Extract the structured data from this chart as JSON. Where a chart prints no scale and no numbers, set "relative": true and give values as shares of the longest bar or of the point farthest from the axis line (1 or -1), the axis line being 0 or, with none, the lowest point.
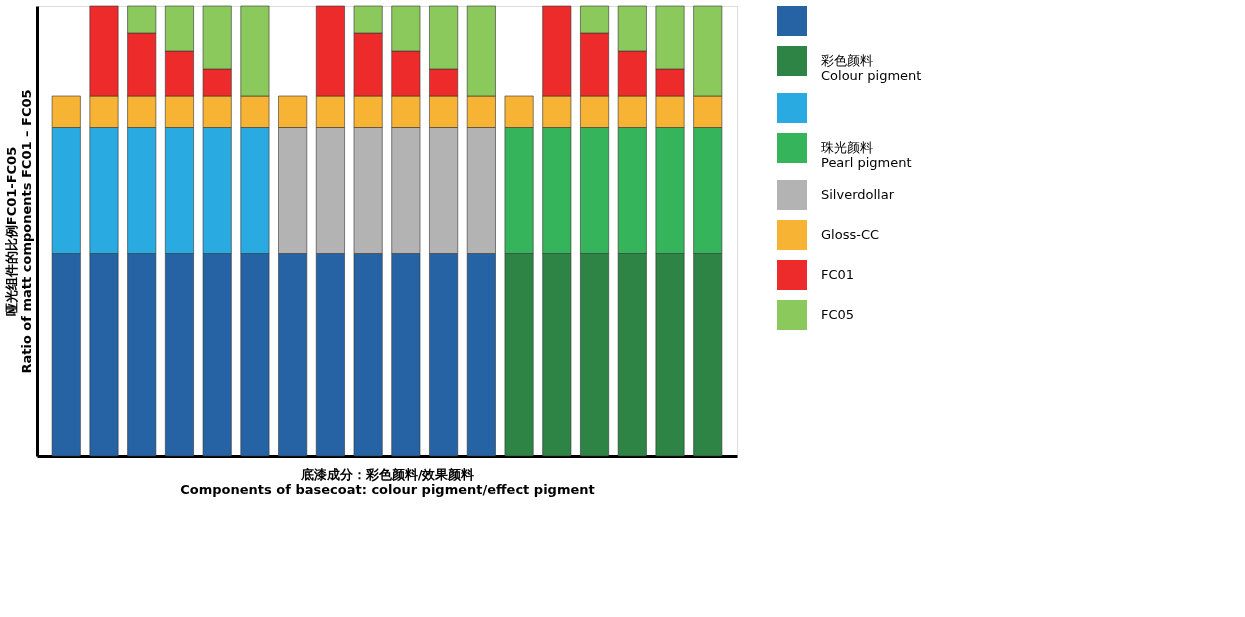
{
  "chart_data": {
    "type": "bar",
    "stacked": true,
    "relative": true,
    "grid": false,
    "tick_labels": false,
    "legend": "right",
    "xlabel": "底漆成分：彩色颜料/效果颜料\nComponents of basecoat: colour pigment/effect pigment",
    "ylabel": "哑光组件的比例FC01-FC05\nRatio of matt components FC01 – FC05",
    "categories": [
      null,
      null,
      null,
      null,
      null,
      null,
      null,
      null,
      null,
      null,
      null,
      null,
      null,
      null,
      null,
      null,
      null,
      null
    ],
    "series": [
      {
        "name": "彩色颜料\nColour pigment",
        "colors": [
          "#2563a5",
          "#2563a5",
          "#2563a5",
          "#2563a5",
          "#2563a5",
          "#2563a5",
          "#2563a5",
          "#2563a5",
          "#2563a5",
          "#2563a5",
          "#2563a5",
          "#2563a5",
          "#2e8444",
          "#2e8444",
          "#2e8444",
          "#2e8444",
          "#2e8444",
          "#2e8444"
        ],
        "values": [
          0.45,
          0.45,
          0.45,
          0.45,
          0.45,
          0.45,
          0.45,
          0.45,
          0.45,
          0.45,
          0.45,
          0.45,
          0.45,
          0.45,
          0.45,
          0.45,
          0.45,
          0.45
        ]
      },
      {
        "name": "珠光颜料\nPearl pigment",
        "colors": [
          "#29abe2",
          "#29abe2",
          "#29abe2",
          "#29abe2",
          "#29abe2",
          "#29abe2",
          null,
          null,
          null,
          null,
          null,
          null,
          "#35b45b",
          "#35b45b",
          "#35b45b",
          "#35b45b",
          "#35b45b",
          "#35b45b"
        ],
        "values": [
          0.28,
          0.28,
          0.28,
          0.28,
          0.28,
          0.28,
          null,
          null,
          null,
          null,
          null,
          null,
          0.28,
          0.28,
          0.28,
          0.28,
          0.28,
          0.28
        ]
      },
      {
        "name": "Silverdollar",
        "color": "#b3b3b3",
        "values": [
          null,
          null,
          null,
          null,
          null,
          null,
          0.28,
          0.28,
          0.28,
          0.28,
          0.28,
          0.28,
          null,
          null,
          null,
          null,
          null,
          null
        ]
      },
      {
        "name": "Gloss-CC",
        "color": "#f7b334",
        "values": [
          0.07,
          0.07,
          0.07,
          0.07,
          0.07,
          0.07,
          0.07,
          0.07,
          0.07,
          0.07,
          0.07,
          0.07,
          0.07,
          0.07,
          0.07,
          0.07,
          0.07,
          0.07
        ]
      },
      {
        "name": "FC01",
        "color": "#ee2b2b",
        "values": [
          null,
          0.2,
          0.14,
          0.1,
          0.06,
          null,
          null,
          0.2,
          0.14,
          0.1,
          0.06,
          null,
          null,
          0.2,
          0.14,
          0.1,
          0.06,
          null
        ]
      },
      {
        "name": "FC05",
        "color": "#8bc95d",
        "values": [
          null,
          null,
          0.06,
          0.1,
          0.14,
          0.2,
          null,
          null,
          0.06,
          0.1,
          0.14,
          0.2,
          null,
          null,
          0.06,
          0.1,
          0.14,
          0.2
        ]
      }
    ]
  }
}
